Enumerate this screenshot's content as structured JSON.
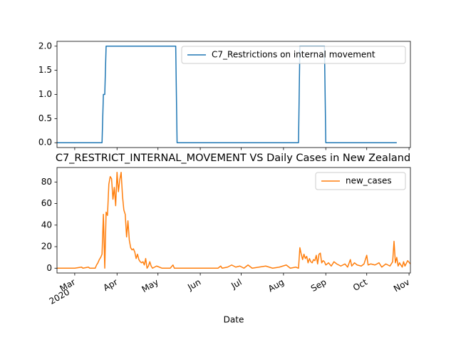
{
  "chart_data": [
    {
      "type": "line",
      "x": [
        -13,
        20,
        21,
        22,
        23,
        74,
        75,
        164,
        165,
        183,
        184,
        236
      ],
      "series": [
        {
          "name": "C7_Restrictions on internal movement",
          "color": "#1f77b4",
          "values": [
            0,
            0,
            1,
            1,
            2,
            2,
            0,
            0,
            2,
            2,
            0,
            0
          ]
        }
      ],
      "ylim": [
        -0.1,
        2.1
      ],
      "yticks": [
        {
          "value": 0,
          "label": "0.0"
        },
        0.5,
        {
          "value": 1,
          "label": "1.0"
        },
        1.5,
        {
          "value": 2,
          "label": "2.0"
        }
      ],
      "legend": "upper right"
    },
    {
      "type": "line",
      "title": "C7_RESTRICT_INTERNAL_MOVEMENT VS Daily Cases in New Zealand",
      "xlabel": "Date",
      "x": [
        -13,
        0,
        5,
        6,
        10,
        11,
        15,
        16,
        17,
        18,
        19,
        20,
        21,
        22,
        23,
        24,
        25,
        26,
        27,
        28,
        29,
        30,
        31,
        32,
        33,
        34,
        35,
        36,
        37,
        38,
        39,
        40,
        41,
        42,
        43,
        44,
        45,
        46,
        47,
        48,
        49,
        50,
        51,
        52,
        53,
        54,
        55,
        56,
        57,
        60,
        62,
        64,
        70,
        72,
        73,
        80,
        90,
        105,
        107,
        108,
        112,
        115,
        118,
        121,
        124,
        127,
        130,
        135,
        140,
        145,
        150,
        155,
        158,
        162,
        164,
        165,
        166,
        167,
        168,
        169,
        170,
        171,
        172,
        173,
        174,
        175,
        176,
        177,
        178,
        179,
        180,
        181,
        182,
        183,
        184,
        186,
        188,
        190,
        192,
        195,
        198,
        200,
        202,
        203,
        205,
        207,
        210,
        212,
        214,
        215,
        217,
        220,
        223,
        225,
        228,
        231,
        233,
        234,
        235,
        236,
        237,
        238,
        240,
        241,
        242,
        244,
        246
      ],
      "series": [
        {
          "name": "new_cases",
          "color": "#ff7f0e",
          "values": [
            0,
            0,
            1,
            0,
            1,
            0,
            0,
            3,
            5,
            8,
            10,
            13,
            50,
            0,
            52,
            49,
            78,
            85,
            83,
            64,
            75,
            58,
            89,
            71,
            82,
            89,
            67,
            54,
            50,
            29,
            44,
            26,
            19,
            17,
            18,
            15,
            9,
            13,
            8,
            6,
            5,
            6,
            3,
            9,
            0,
            2,
            6,
            2,
            0,
            2,
            1,
            0,
            0,
            3,
            0,
            0,
            0,
            0,
            2,
            0,
            1,
            3,
            1,
            2,
            0,
            3,
            0,
            1,
            2,
            0,
            1,
            3,
            0,
            1,
            0,
            19,
            13,
            8,
            13,
            9,
            11,
            5,
            9,
            6,
            5,
            8,
            7,
            12,
            4,
            13,
            14,
            5,
            7,
            6,
            3,
            5,
            2,
            6,
            4,
            2,
            4,
            1,
            8,
            2,
            5,
            3,
            2,
            4,
            12,
            3,
            4,
            3,
            5,
            1,
            4,
            2,
            6,
            25,
            5,
            10,
            2,
            5,
            1,
            6,
            2,
            7,
            4
          ]
        }
      ],
      "xlim": [
        -13,
        246
      ],
      "xticks": [
        {
          "value": 0,
          "label": "Mar"
        },
        {
          "value": 31,
          "label": "Apr"
        },
        {
          "value": 61,
          "label": "May"
        },
        {
          "value": 92,
          "label": "Jun"
        },
        {
          "value": 122,
          "label": "Jul"
        },
        {
          "value": 153,
          "label": "Aug"
        },
        {
          "value": 184,
          "label": "Sep"
        },
        {
          "value": 214,
          "label": "Oct"
        },
        {
          "value": 245,
          "label": "Nov"
        }
      ],
      "xtick_year": {
        "value": 0,
        "label": "2020"
      },
      "ylim": [
        -4.45,
        93.45
      ],
      "yticks": [
        0,
        20,
        40,
        60,
        80
      ],
      "legend": "upper right"
    }
  ]
}
